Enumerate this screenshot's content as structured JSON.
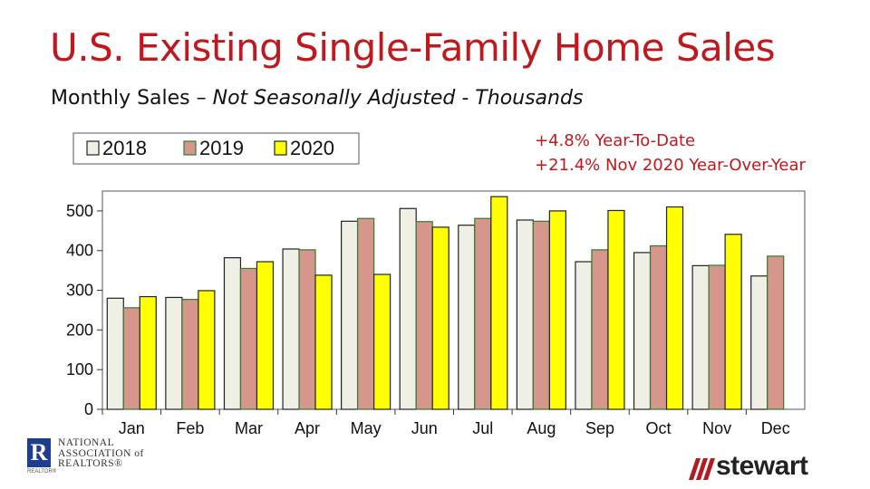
{
  "header": {
    "title": "U.S. Existing Single-Family Home Sales",
    "subtitle_plain": "Monthly Sales – ",
    "subtitle_italic": "Not Seasonally Adjusted - Thousands"
  },
  "notes": {
    "ytd": "+4.8% Year-To-Date",
    "yoy": "+21.4% Nov 2020 Year-Over-Year"
  },
  "logos": {
    "nar_letter": "R",
    "nar_line1": "NATIONAL",
    "nar_line2": "ASSOCIATION of",
    "nar_line3": "REALTORS®",
    "nar_small": "REALTOR®",
    "stewart_word": "stewart"
  },
  "colors": {
    "title": "#c0181e",
    "series_2018": "#efefe6",
    "series_2019": "#d6968c",
    "series_2020": "#ffff00",
    "edge_2019": "#2e7d32"
  },
  "chart_data": {
    "type": "bar",
    "categories": [
      "Jan",
      "Feb",
      "Mar",
      "Apr",
      "May",
      "Jun",
      "Jul",
      "Aug",
      "Sep",
      "Oct",
      "Nov",
      "Dec"
    ],
    "series": [
      {
        "name": "2018",
        "values": [
          280,
          282,
          382,
          404,
          474,
          506,
          464,
          477,
          372,
          395,
          362,
          336
        ]
      },
      {
        "name": "2019",
        "values": [
          256,
          277,
          355,
          402,
          481,
          473,
          481,
          474,
          402,
          412,
          363,
          386
        ]
      },
      {
        "name": "2020",
        "values": [
          284,
          299,
          372,
          338,
          340,
          459,
          536,
          500,
          501,
          510,
          441,
          null
        ]
      }
    ],
    "ylim": [
      0,
      550
    ],
    "yticks": [
      0,
      100,
      200,
      300,
      400,
      500
    ],
    "grid": false,
    "legend": "top-left"
  }
}
